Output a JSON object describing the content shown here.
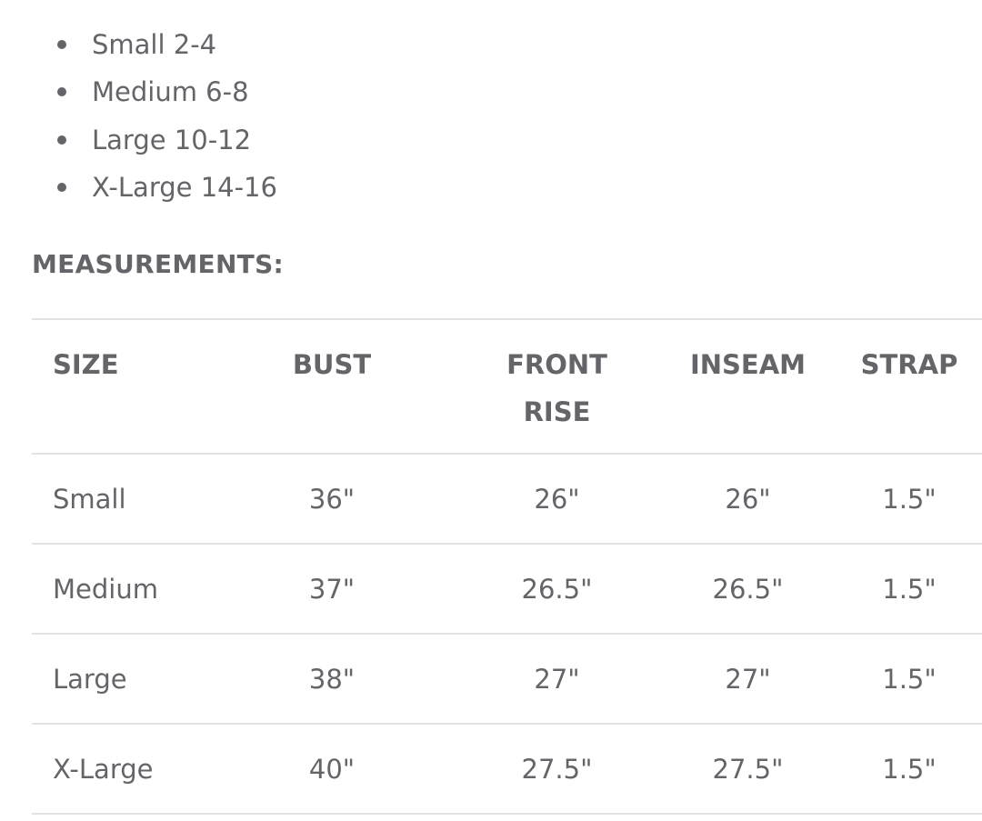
{
  "sizes_list": [
    "Small 2-4",
    "Medium 6-8",
    "Large 10-12",
    "X-Large 14-16"
  ],
  "measurements_heading": "MEASUREMENTS:",
  "table": {
    "headers": [
      "SIZE",
      "BUST",
      "FRONT RISE",
      "INSEAM",
      "STRAP"
    ],
    "rows": [
      [
        "Small",
        "36\"",
        "26\"",
        "26\"",
        "1.5\""
      ],
      [
        "Medium",
        "37\"",
        "26.5\"",
        "26.5\"",
        "1.5\""
      ],
      [
        "Large",
        "38\"",
        "27\"",
        "27\"",
        "1.5\""
      ],
      [
        "X-Large",
        "40\"",
        "27.5\"",
        "27.5\"",
        "1.5\""
      ]
    ]
  },
  "colors": {
    "text": "#646469",
    "divider": "#e2e2e2"
  }
}
